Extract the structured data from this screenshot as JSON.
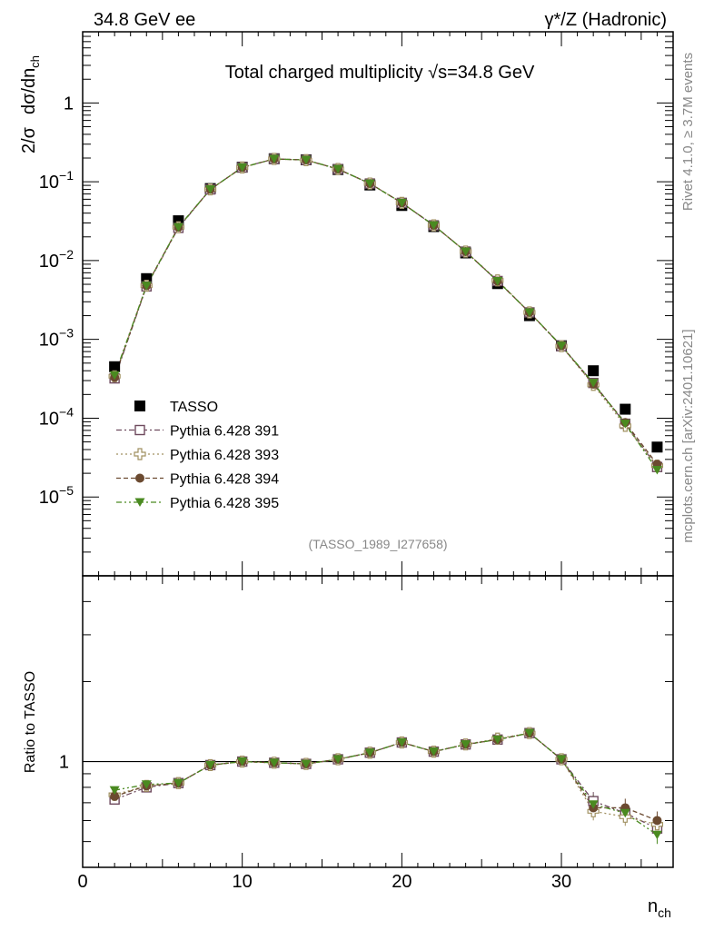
{
  "header": {
    "left": "34.8 GeV ee",
    "right": "γ*/Z (Hadronic)"
  },
  "side_labels": {
    "rivet": "Rivet 4.1.0, ≥ 3.7M events",
    "mcplots": "mcplots.cern.ch [arXiv:2401.10621]"
  },
  "colors": {
    "tasso": "#000000",
    "p391": "#6e4a5e",
    "p393": "#a09060",
    "p394": "#6b4a30",
    "p395": "#4a8a20",
    "ref_line": "#000000"
  },
  "chart_data": [
    {
      "type": "scatter",
      "panel": "main",
      "title": "Total charged multiplicity √s=34.8 GeV",
      "ylabel": "2/σ   dσ/dn_ch",
      "yscale": "log",
      "ylim": [
        1e-06,
        8
      ],
      "xlim": [
        0,
        37
      ],
      "ytick_labels": [
        "1",
        "10^-1",
        "10^-2",
        "10^-3",
        "10^-4",
        "10^-5"
      ],
      "ytick_values": [
        1,
        0.1,
        0.01,
        0.001,
        0.0001,
        1e-05
      ],
      "source": "(TASSO_1989_I277658)",
      "legend": "left-lower",
      "x": [
        2,
        4,
        6,
        8,
        10,
        12,
        14,
        16,
        18,
        20,
        22,
        24,
        26,
        28,
        30,
        32,
        34,
        36
      ],
      "series": [
        {
          "name": "TASSO",
          "marker": "square-filled",
          "values": [
            0.00045,
            0.0059,
            0.032,
            0.082,
            0.153,
            0.196,
            0.19,
            0.143,
            0.091,
            0.05,
            0.027,
            0.0125,
            0.0051,
            0.002,
            0.00083,
            0.0004,
            0.00013,
            4.3e-05
          ]
        },
        {
          "name": "Pythia 6.428 391",
          "marker": "square-open",
          "values": [
            0.00032,
            0.0047,
            0.026,
            0.08,
            0.152,
            0.195,
            0.189,
            0.145,
            0.095,
            0.054,
            0.028,
            0.013,
            0.0055,
            0.0022,
            0.00082,
            0.00028,
            8.5e-05,
            2.4e-05
          ]
        },
        {
          "name": "Pythia 6.428 393",
          "marker": "cross-open",
          "values": [
            0.00034,
            0.0048,
            0.0265,
            0.08,
            0.152,
            0.195,
            0.188,
            0.145,
            0.095,
            0.054,
            0.028,
            0.013,
            0.0056,
            0.0022,
            0.00082,
            0.000265,
            8e-05,
            2.5e-05
          ]
        },
        {
          "name": "Pythia 6.428 394",
          "marker": "circle-filled",
          "values": [
            0.00033,
            0.0048,
            0.0265,
            0.08,
            0.152,
            0.195,
            0.189,
            0.145,
            0.095,
            0.054,
            0.028,
            0.013,
            0.0055,
            0.0022,
            0.00083,
            0.00027,
            8.8e-05,
            2.6e-05
          ]
        },
        {
          "name": "Pythia 6.428 395",
          "marker": "triangle-down-filled",
          "values": [
            0.00035,
            0.0048,
            0.0265,
            0.08,
            0.152,
            0.195,
            0.189,
            0.145,
            0.095,
            0.054,
            0.028,
            0.013,
            0.0055,
            0.0022,
            0.00083,
            0.00028,
            8.5e-05,
            2.2e-05
          ]
        }
      ]
    },
    {
      "type": "scatter",
      "panel": "ratio",
      "ylabel": "Ratio to TASSO",
      "xlabel": "n_ch",
      "yscale": "log",
      "ylim": [
        0.4,
        5
      ],
      "xlim": [
        0,
        37
      ],
      "xtick_labels": [
        "0",
        "10",
        "20",
        "30"
      ],
      "xtick_values": [
        0,
        10,
        20,
        30
      ],
      "ytick_labels": [
        "1"
      ],
      "ytick_values": [
        1
      ],
      "reference_line": 1,
      "x": [
        2,
        4,
        6,
        8,
        10,
        12,
        14,
        16,
        18,
        20,
        22,
        24,
        26,
        28,
        30,
        32,
        34,
        36
      ],
      "series": [
        {
          "name": "Pythia 6.428 391",
          "values": [
            0.72,
            0.8,
            0.83,
            0.97,
            1.0,
            0.99,
            0.98,
            1.02,
            1.08,
            1.18,
            1.09,
            1.16,
            1.21,
            1.28,
            1.02,
            0.71,
            0.64,
            0.56
          ]
        },
        {
          "name": "Pythia 6.428 393",
          "values": [
            0.75,
            0.81,
            0.83,
            0.97,
            1.0,
            0.99,
            0.98,
            1.02,
            1.08,
            1.18,
            1.09,
            1.16,
            1.22,
            1.28,
            1.02,
            0.65,
            0.62,
            0.58
          ]
        },
        {
          "name": "Pythia 6.428 394",
          "values": [
            0.74,
            0.81,
            0.83,
            0.97,
            1.0,
            0.99,
            0.98,
            1.02,
            1.08,
            1.18,
            1.09,
            1.16,
            1.21,
            1.28,
            1.02,
            0.67,
            0.67,
            0.6
          ]
        },
        {
          "name": "Pythia 6.428 395",
          "values": [
            0.78,
            0.82,
            0.83,
            0.97,
            1.0,
            0.99,
            0.98,
            1.02,
            1.08,
            1.18,
            1.09,
            1.16,
            1.21,
            1.28,
            1.02,
            0.69,
            0.64,
            0.53
          ]
        }
      ]
    }
  ]
}
